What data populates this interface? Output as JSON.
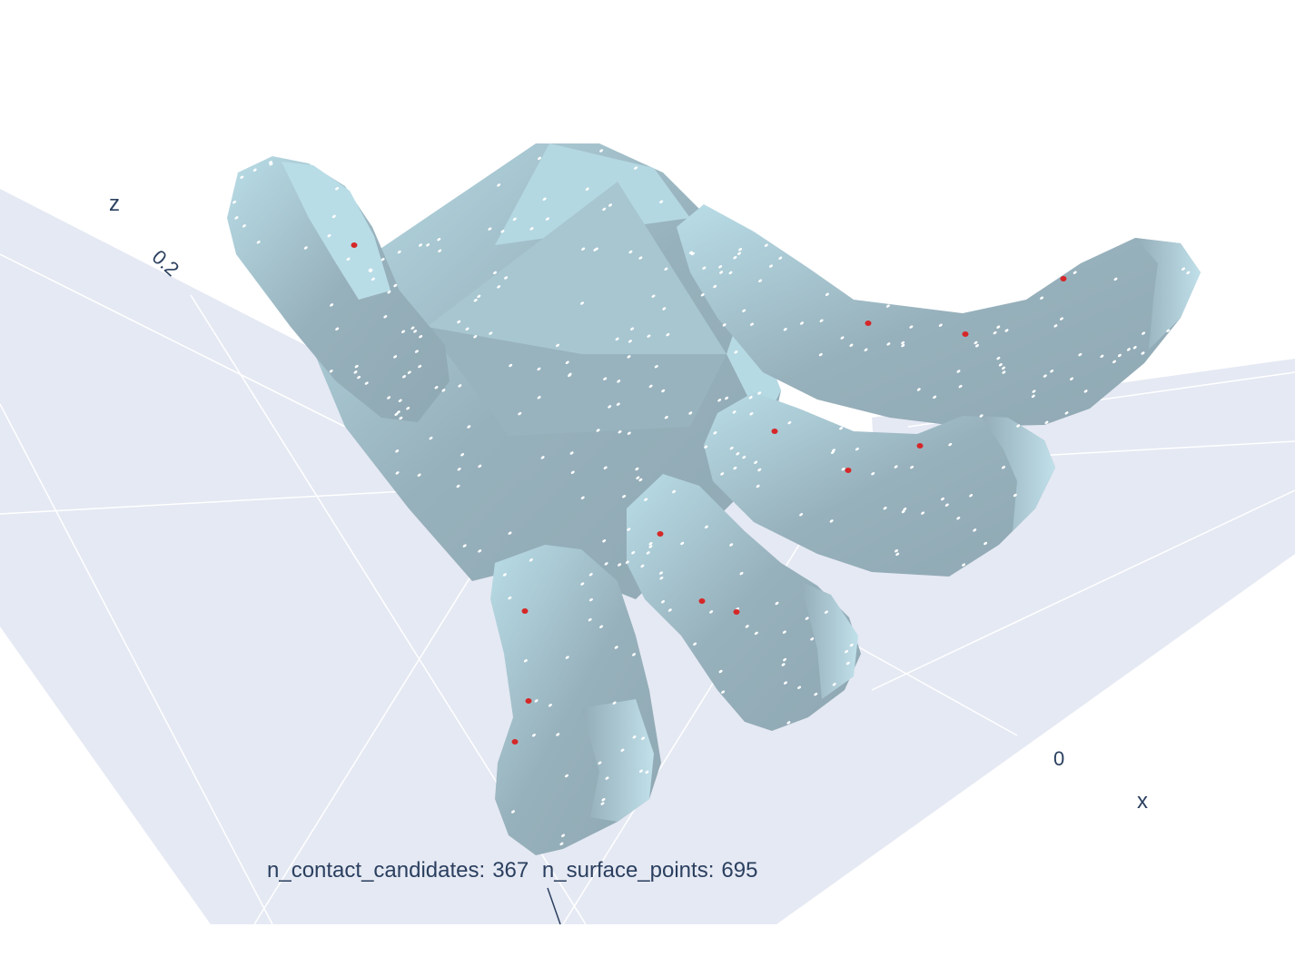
{
  "scene": {
    "axes": {
      "z": {
        "title": "z",
        "tick_label": "0.2"
      },
      "x": {
        "title": "x",
        "tick_label": "0"
      }
    },
    "colors": {
      "background": "#ffffff",
      "floor": "#e5e9f3",
      "grid": "#ffffff",
      "mesh_light": "#b6dae4",
      "mesh_shade": "#93acb7",
      "surface_points": "#ffffff",
      "contact_points": "#d62728",
      "axis_text": "#2a3f5f"
    },
    "object": "hand-mesh"
  },
  "annotation": {
    "contact_label": "n_contact_candidates:",
    "contact_value": "367",
    "surface_label": "n_surface_points:",
    "surface_value": "695"
  }
}
